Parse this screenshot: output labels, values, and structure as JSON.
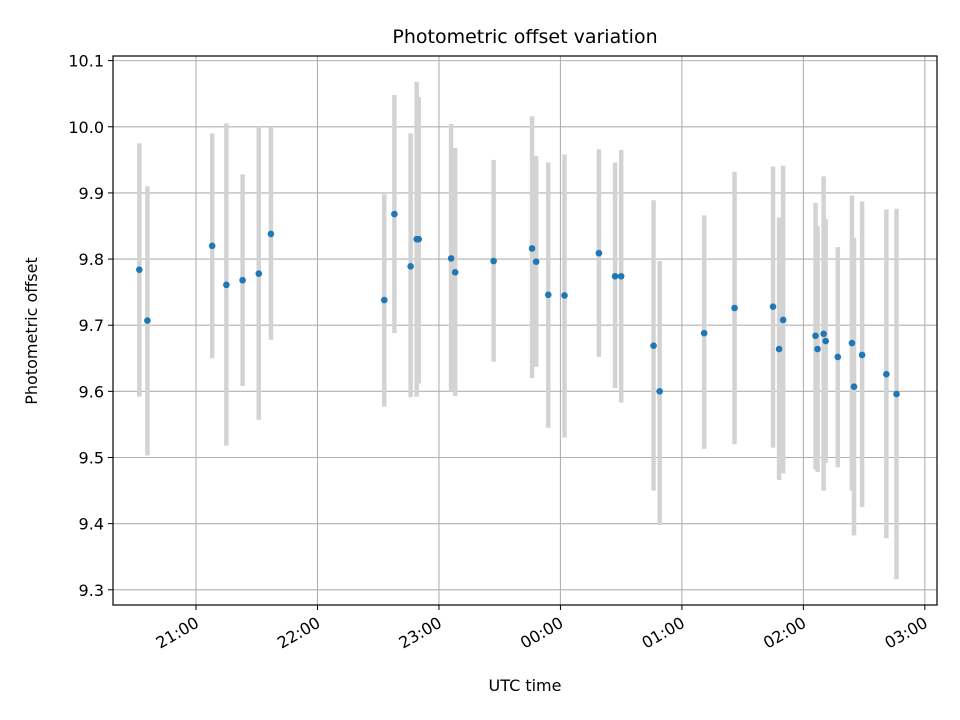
{
  "chart_data": {
    "type": "scatter",
    "title": "Photometric offset variation",
    "xlabel": "UTC time",
    "ylabel": "Photometric offset",
    "x_axis": {
      "kind": "time",
      "range": [
        "20:19",
        "03:06"
      ],
      "tick_labels": [
        "21:00",
        "22:00",
        "23:00",
        "00:00",
        "01:00",
        "02:00",
        "03:00"
      ],
      "tick_times": [
        "21:00",
        "22:00",
        "23:00",
        "00:00",
        "01:00",
        "02:00",
        "03:00"
      ]
    },
    "ylim": [
      9.277,
      10.107
    ],
    "y_ticks": [
      9.3,
      9.4,
      9.5,
      9.6,
      9.7,
      9.8,
      9.9,
      10.0,
      10.1
    ],
    "y_tick_labels": [
      "9.3",
      "9.4",
      "9.5",
      "9.6",
      "9.7",
      "9.8",
      "9.9",
      "10.0",
      "10.1"
    ],
    "grid": true,
    "colors": {
      "point": "#1f77b4",
      "errorbar": "#d3d3d3",
      "grid": "#b0b0b0"
    },
    "points": [
      {
        "t": "20:32",
        "y": 9.784,
        "lo": 9.592,
        "hi": 9.975
      },
      {
        "t": "20:36",
        "y": 9.707,
        "lo": 9.503,
        "hi": 9.91
      },
      {
        "t": "21:08",
        "y": 9.82,
        "lo": 9.65,
        "hi": 9.99
      },
      {
        "t": "21:15",
        "y": 9.761,
        "lo": 9.518,
        "hi": 10.005
      },
      {
        "t": "21:23",
        "y": 9.768,
        "lo": 9.608,
        "hi": 9.928
      },
      {
        "t": "21:31",
        "y": 9.778,
        "lo": 9.557,
        "hi": 10.0
      },
      {
        "t": "21:37",
        "y": 9.838,
        "lo": 9.678,
        "hi": 10.0
      },
      {
        "t": "22:33",
        "y": 9.738,
        "lo": 9.577,
        "hi": 9.898
      },
      {
        "t": "22:38",
        "y": 9.868,
        "lo": 9.688,
        "hi": 10.048
      },
      {
        "t": "22:46",
        "y": 9.789,
        "lo": 9.591,
        "hi": 9.99
      },
      {
        "t": "22:49",
        "y": 9.83,
        "lo": 9.592,
        "hi": 10.068
      },
      {
        "t": "22:50",
        "y": 9.83,
        "lo": 9.612,
        "hi": 10.045
      },
      {
        "t": "23:06",
        "y": 9.801,
        "lo": 9.6,
        "hi": 10.004
      },
      {
        "t": "23:08",
        "y": 9.78,
        "lo": 9.593,
        "hi": 9.968
      },
      {
        "t": "23:27",
        "y": 9.797,
        "lo": 9.645,
        "hi": 9.95
      },
      {
        "t": "23:46",
        "y": 9.816,
        "lo": 9.62,
        "hi": 10.016
      },
      {
        "t": "23:48",
        "y": 9.796,
        "lo": 9.637,
        "hi": 9.956
      },
      {
        "t": "23:54",
        "y": 9.746,
        "lo": 9.545,
        "hi": 9.946
      },
      {
        "t": "00:02",
        "y": 9.745,
        "lo": 9.53,
        "hi": 9.958
      },
      {
        "t": "00:19",
        "y": 9.809,
        "lo": 9.652,
        "hi": 9.966
      },
      {
        "t": "00:27",
        "y": 9.774,
        "lo": 9.605,
        "hi": 9.946
      },
      {
        "t": "00:30",
        "y": 9.774,
        "lo": 9.583,
        "hi": 9.965
      },
      {
        "t": "00:46",
        "y": 9.669,
        "lo": 9.45,
        "hi": 9.889
      },
      {
        "t": "00:49",
        "y": 9.6,
        "lo": 9.398,
        "hi": 9.797
      },
      {
        "t": "01:11",
        "y": 9.688,
        "lo": 9.513,
        "hi": 9.866
      },
      {
        "t": "01:26",
        "y": 9.726,
        "lo": 9.52,
        "hi": 9.932
      },
      {
        "t": "01:45",
        "y": 9.728,
        "lo": 9.515,
        "hi": 9.94
      },
      {
        "t": "01:48",
        "y": 9.664,
        "lo": 9.466,
        "hi": 9.863
      },
      {
        "t": "01:50",
        "y": 9.708,
        "lo": 9.476,
        "hi": 9.941
      },
      {
        "t": "02:06",
        "y": 9.684,
        "lo": 9.482,
        "hi": 9.885
      },
      {
        "t": "02:07",
        "y": 9.664,
        "lo": 9.478,
        "hi": 9.85
      },
      {
        "t": "02:10",
        "y": 9.687,
        "lo": 9.45,
        "hi": 9.925
      },
      {
        "t": "02:11",
        "y": 9.676,
        "lo": 9.492,
        "hi": 9.86
      },
      {
        "t": "02:17",
        "y": 9.652,
        "lo": 9.485,
        "hi": 9.818
      },
      {
        "t": "02:24",
        "y": 9.673,
        "lo": 9.45,
        "hi": 9.896
      },
      {
        "t": "02:25",
        "y": 9.607,
        "lo": 9.382,
        "hi": 9.832
      },
      {
        "t": "02:29",
        "y": 9.655,
        "lo": 9.425,
        "hi": 9.887
      },
      {
        "t": "02:41",
        "y": 9.626,
        "lo": 9.378,
        "hi": 9.875
      },
      {
        "t": "02:46",
        "y": 9.596,
        "lo": 9.316,
        "hi": 9.876
      }
    ]
  }
}
